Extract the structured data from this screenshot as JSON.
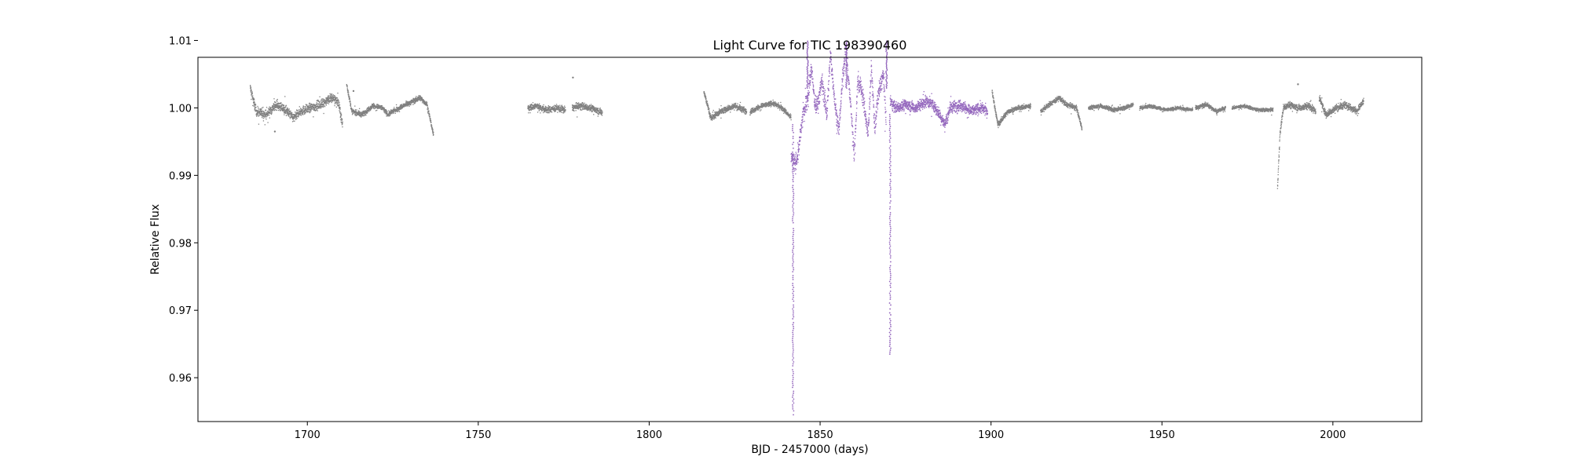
{
  "chart_data": {
    "type": "scatter",
    "title": "Light Curve for TIC 198390460",
    "xlabel": "BJD - 2457000 (days)",
    "ylabel": "Relative Flux",
    "xlim": [
      1668,
      2026
    ],
    "ylim": [
      0.9535,
      1.0075
    ],
    "xticks": [
      1700,
      1750,
      1800,
      1850,
      1900,
      1950,
      2000
    ],
    "yticks": [
      0.96,
      0.97,
      0.98,
      0.99,
      1.0,
      1.01
    ],
    "ytick_labels": [
      "0.96",
      "0.97",
      "0.98",
      "0.99",
      "1.00",
      "1.01"
    ],
    "grid": false,
    "colors": {
      "baseline": "#808080",
      "highlight": "#9467bd"
    },
    "series": [
      {
        "color": "baseline",
        "segments": [
          {
            "x": [
              1683.3,
              1685,
              1688,
              1691,
              1694,
              1696,
              1698,
              1701,
              1704,
              1707,
              1709,
              1710.3
            ],
            "y": [
              1.003,
              0.9995,
              0.999,
              1.0005,
              0.9995,
              0.9985,
              0.9995,
              1.0,
              1.0005,
              1.0015,
              1.001,
              0.9975
            ],
            "spread": 0.0011
          },
          {
            "x": [
              1711.5,
              1713,
              1716,
              1719,
              1722,
              1723.6,
              1725,
              1728,
              1731,
              1733,
              1735,
              1736.9
            ],
            "y": [
              1.0035,
              0.9995,
              0.999,
              1.0003,
              1.0,
              0.999,
              0.9995,
              1.0003,
              1.001,
              1.0015,
              1.0005,
              0.996
            ],
            "spread": 0.0006
          },
          {
            "x": [
              1764.5,
              1767,
              1770,
              1773,
              1775.5
            ],
            "y": [
              1.0,
              1.0003,
              0.9997,
              1.0,
              0.9997
            ],
            "spread": 0.0008
          },
          {
            "x": [
              1777.5,
              1780,
              1783,
              1786.3
            ],
            "y": [
              1.0,
              1.0003,
              1.0,
              0.9993
            ],
            "spread": 0.0008
          },
          {
            "x": [
              1816,
              1818,
              1821,
              1825,
              1828.5
            ],
            "y": [
              1.0025,
              0.9985,
              0.9995,
              1.0003,
              0.9995
            ],
            "spread": 0.0007
          },
          {
            "x": [
              1829.5,
              1833,
              1836,
              1839,
              1841.5
            ],
            "y": [
              0.9995,
              1.0003,
              1.0007,
              1.0,
              0.9985
            ],
            "spread": 0.0006
          },
          {
            "x": [
              1900.3,
              1902,
              1905,
              1908,
              1911.6
            ],
            "y": [
              1.0025,
              0.9975,
              0.9995,
              1.0,
              1.0003
            ],
            "spread": 0.0006
          },
          {
            "x": [
              1914.5,
              1917,
              1920,
              1922,
              1925,
              1926.6
            ],
            "y": [
              0.9995,
              1.0005,
              1.0015,
              1.0005,
              1.0,
              0.997
            ],
            "spread": 0.0006
          },
          {
            "x": [
              1928.5,
              1932,
              1936,
              1939,
              1941.6
            ],
            "y": [
              1.0,
              1.0003,
              0.9997,
              1.0,
              1.0005
            ],
            "spread": 0.0005
          },
          {
            "x": [
              1943.5,
              1947,
              1951,
              1955,
              1959
            ],
            "y": [
              1.0,
              1.0003,
              0.9997,
              1.0,
              0.9997
            ],
            "spread": 0.0004
          },
          {
            "x": [
              1959.8,
              1963,
              1966,
              1968.6
            ],
            "y": [
              1.0,
              1.0005,
              0.9995,
              1.0
            ],
            "spread": 0.0005
          },
          {
            "x": [
              1970.5,
              1974,
              1978,
              1982.5
            ],
            "y": [
              1.0,
              1.0003,
              0.9997,
              0.9997
            ],
            "spread": 0.0004
          },
          {
            "x": [
              1983.8,
              1984.5,
              1985.5,
              1987,
              1990,
              1993,
              1995
            ],
            "y": [
              0.988,
              0.996,
              1.0,
              1.0005,
              1.0,
              1.0003,
              0.9995
            ],
            "spread": 0.0008
          },
          {
            "x": [
              1996,
              1998,
              2001,
              2004,
              2007,
              2009
            ],
            "y": [
              1.0015,
              0.999,
              1.0,
              1.0005,
              0.9995,
              1.001
            ],
            "spread": 0.0008
          }
        ],
        "outliers": [
          {
            "x": 1777.7,
            "y": 1.0045
          },
          {
            "x": 1989.8,
            "y": 1.0035
          },
          {
            "x": 1690.5,
            "y": 0.9965
          },
          {
            "x": 1713.5,
            "y": 1.0025
          }
        ]
      },
      {
        "color": "highlight",
        "segments": [
          {
            "x": [
              1841.5,
              1842.5,
              1843.5,
              1845,
              1846.5,
              1847.5,
              1848.5,
              1849.5,
              1850.5,
              1852,
              1853,
              1854.5,
              1855.5,
              1856.5,
              1857.5,
              1859,
              1860,
              1861,
              1862,
              1863,
              1864,
              1865,
              1866,
              1867,
              1868.5,
              1869.3
            ],
            "y": [
              0.993,
              0.9915,
              0.993,
              0.999,
              1.002,
              1.006,
              1.0,
              1.001,
              1.004,
              0.999,
              1.008,
              1.0,
              0.9965,
              1.004,
              1.009,
              1.0,
              0.993,
              1.004,
              1.003,
              1.0,
              0.996,
              1.006,
              0.997,
              1.002,
              1.005,
              0.998
            ],
            "spread": 0.0022
          },
          {
            "x": [
              1870.5,
              1872,
              1875,
              1878,
              1881,
              1883,
              1885,
              1886.5,
              1888,
              1891,
              1894,
              1897,
              1899
            ],
            "y": [
              1.001,
              1.0,
              1.0005,
              1.0,
              1.001,
              1.0005,
              0.999,
              0.9975,
              1.0,
              1.0005,
              0.9995,
              1.0,
              0.9995
            ],
            "spread": 0.0013
          }
        ],
        "spikes": [
          {
            "x": 1869.3,
            "y": 1.01
          },
          {
            "x": 1846.2,
            "y": 1.01
          },
          {
            "x": 1857.6,
            "y": 1.01
          }
        ],
        "dips": [
          {
            "x": 1842.1,
            "ystart": 0.9975,
            "yend": 0.9545
          },
          {
            "x": 1870.5,
            "ystart": 0.999,
            "yend": 0.9635
          }
        ]
      }
    ]
  }
}
